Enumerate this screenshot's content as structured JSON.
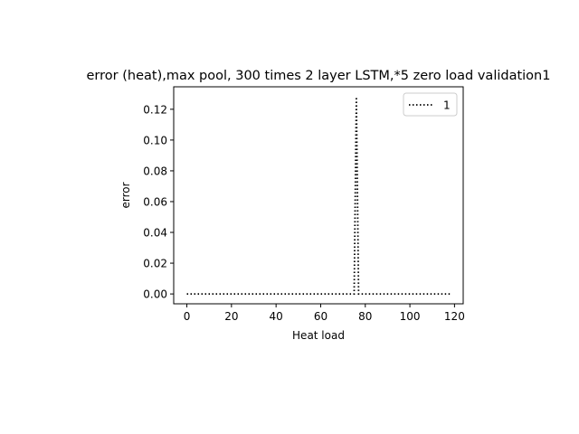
{
  "chart_data": {
    "type": "line",
    "title": "error (heat),max pool, 300 times 2 layer LSTM,*5 zero load validation1",
    "xlabel": "Heat load",
    "ylabel": "error",
    "xlim": [
      -5.9,
      123.9
    ],
    "ylim": [
      -0.0064,
      0.1346
    ],
    "x_ticks": [
      0,
      20,
      40,
      60,
      80,
      100,
      120
    ],
    "x_tick_labels": [
      "0",
      "20",
      "40",
      "60",
      "80",
      "100",
      "120"
    ],
    "y_ticks": [
      0.0,
      0.02,
      0.04,
      0.06,
      0.08,
      0.1,
      0.12
    ],
    "y_tick_labels": [
      "0.00",
      "0.02",
      "0.04",
      "0.06",
      "0.08",
      "0.10",
      "0.12"
    ],
    "grid": false,
    "legend": {
      "position": "top-right",
      "entries": [
        "1"
      ]
    },
    "series": [
      {
        "name": "1",
        "color": "#000000",
        "line_style": "dotted",
        "x": [
          0,
          75,
          76,
          77,
          118
        ],
        "y": [
          0.0,
          0.0,
          0.128,
          0.0,
          0.0
        ]
      }
    ]
  }
}
